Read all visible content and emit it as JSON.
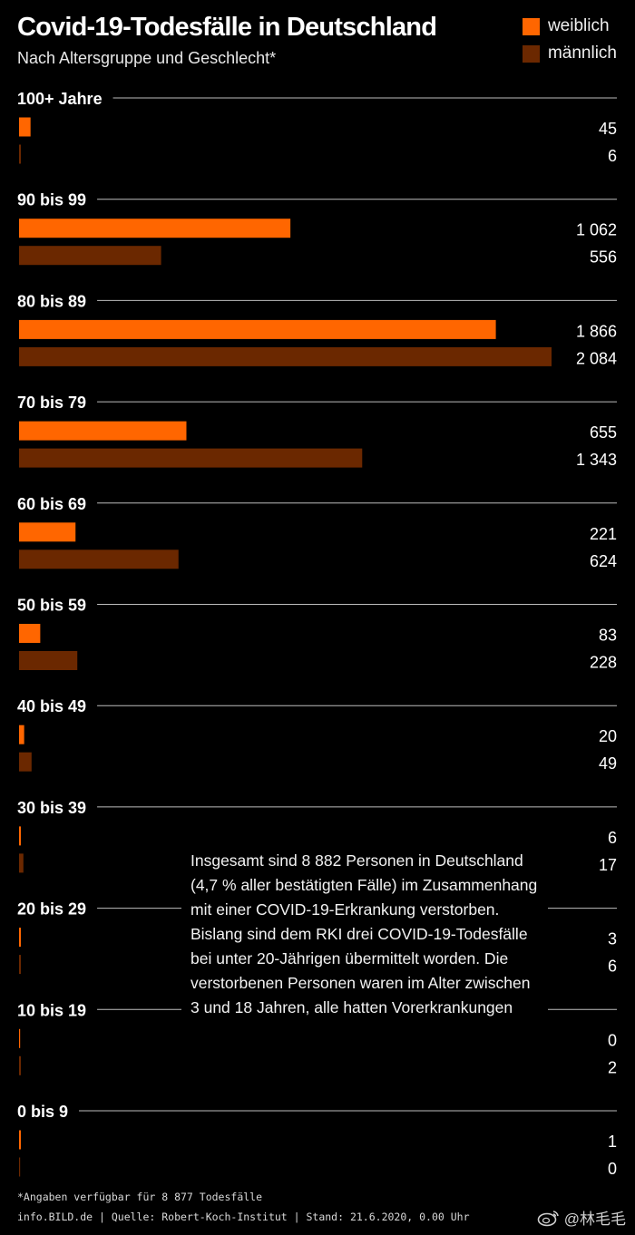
{
  "chart_data": {
    "type": "bar",
    "orientation": "horizontal",
    "title": "Covid-19-Todesfälle in Deutschland",
    "subtitle": "Nach Altersgruppe und Geschlecht*",
    "categories": [
      "100+ Jahre",
      "90 bis 99",
      "80 bis 89",
      "70 bis 79",
      "60 bis 69",
      "50 bis 59",
      "40 bis 49",
      "30 bis 39",
      "20 bis 29",
      "10 bis 19",
      "0 bis 9"
    ],
    "series": [
      {
        "name": "weiblich",
        "color": "#ff6600",
        "values": [
          45,
          1062,
          1866,
          655,
          221,
          83,
          20,
          6,
          3,
          0,
          1
        ],
        "labels": [
          "45",
          "1 062",
          "1 866",
          "655",
          "221",
          "83",
          "20",
          "6",
          "3",
          "0",
          "1"
        ]
      },
      {
        "name": "männlich",
        "color": "#6b2800",
        "values": [
          6,
          556,
          2084,
          1343,
          624,
          228,
          49,
          17,
          6,
          2,
          0
        ],
        "labels": [
          "6",
          "556",
          "2 084",
          "1 343",
          "624",
          "228",
          "49",
          "17",
          "6",
          "2",
          "0"
        ]
      }
    ],
    "legend": "top-right",
    "grid": false
  },
  "note": "Insgesamt sind 8 882 Personen in Deutschland (4,7 % aller bestätigten Fälle) im Zusammenhang mit einer COVID-19-Erkrankung verstorben. Bislang sind dem RKI drei COVID-19-Todesfälle bei unter 20-Jährigen übermittelt worden. Die verstorbenen Personen waren im Alter zwischen 3 und 18 Jahren, alle hatten Vorerkrankungen",
  "footnote": "*Angaben verfügbar für 8 877 Todesfälle",
  "source": "info.BILD.de | Quelle: Robert-Koch-Institut | Stand: 21.6.2020, 0.00 Uhr",
  "watermark": "@林毛毛"
}
